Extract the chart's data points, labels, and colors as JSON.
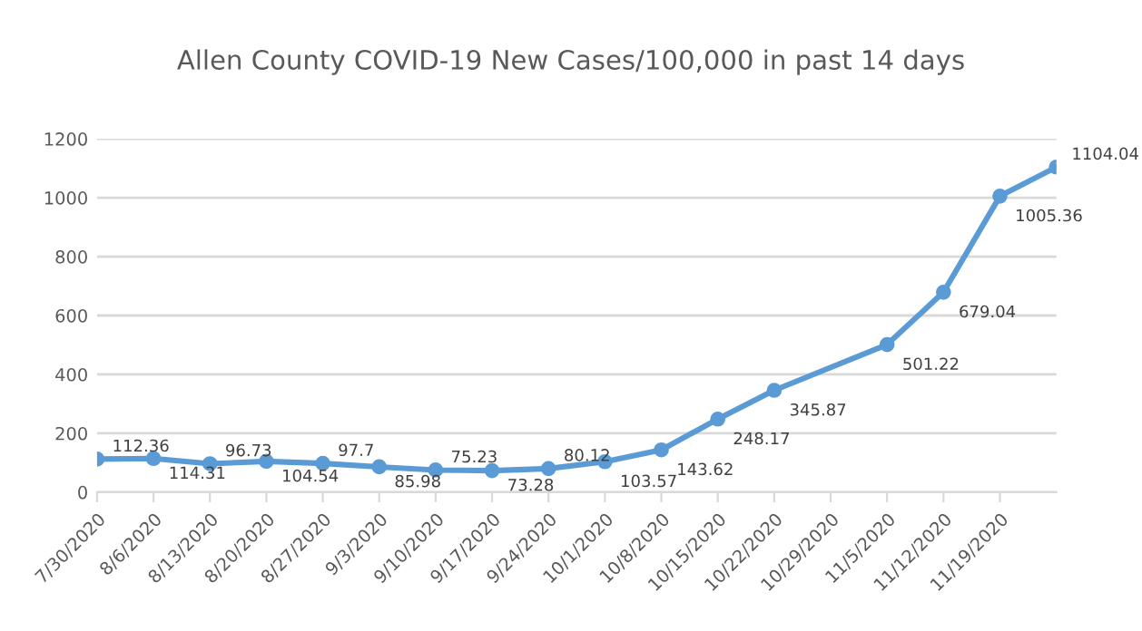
{
  "chart_data": {
    "type": "line",
    "title": "Allen County COVID-19 New Cases/100,000 in past 14 days",
    "x": [
      "2020-07-30",
      "2020-08-06",
      "2020-08-13",
      "2020-08-20",
      "2020-08-27",
      "2020-09-03",
      "2020-09-10",
      "2020-09-17",
      "2020-09-24",
      "2020-10-01",
      "2020-10-08",
      "2020-10-15",
      "2020-10-22",
      "2020-11-05",
      "2020-11-12",
      "2020-11-19",
      "2020-11-26"
    ],
    "series": [
      {
        "color": "#5b9bd5",
        "values": [
          112.36,
          114.31,
          96.73,
          104.54,
          97.7,
          85.98,
          75.23,
          73.28,
          80.12,
          103.57,
          143.62,
          248.17,
          345.87,
          501.22,
          679.04,
          1005.36,
          1104.04
        ]
      }
    ],
    "xlim": [
      "2020-07-30",
      "2020-11-26"
    ],
    "xticks": [
      {
        "value": "2020-07-30",
        "label": "7/30/2020"
      },
      {
        "value": "2020-08-06",
        "label": "8/6/2020"
      },
      {
        "value": "2020-08-13",
        "label": "8/13/2020"
      },
      {
        "value": "2020-08-20",
        "label": "8/20/2020"
      },
      {
        "value": "2020-08-27",
        "label": "8/27/2020"
      },
      {
        "value": "2020-09-03",
        "label": "9/3/2020"
      },
      {
        "value": "2020-09-10",
        "label": "9/10/2020"
      },
      {
        "value": "2020-09-17",
        "label": "9/17/2020"
      },
      {
        "value": "2020-09-24",
        "label": "9/24/2020"
      },
      {
        "value": "2020-10-01",
        "label": "10/1/2020"
      },
      {
        "value": "2020-10-08",
        "label": "10/8/2020"
      },
      {
        "value": "2020-10-15",
        "label": "10/15/2020"
      },
      {
        "value": "2020-10-22",
        "label": "10/22/2020"
      },
      {
        "value": "2020-10-29",
        "label": "10/29/2020"
      },
      {
        "value": "2020-11-05",
        "label": "11/5/2020"
      },
      {
        "value": "2020-11-12",
        "label": "11/12/2020"
      },
      {
        "value": "2020-11-19",
        "label": "11/19/2020"
      }
    ],
    "ylim": [
      0,
      1200
    ],
    "yticks": [
      0,
      200,
      400,
      600,
      800,
      1000,
      1200
    ],
    "grid": "y",
    "marker": "circle",
    "line_style": "solid",
    "data_labels": true,
    "legend": false
  }
}
